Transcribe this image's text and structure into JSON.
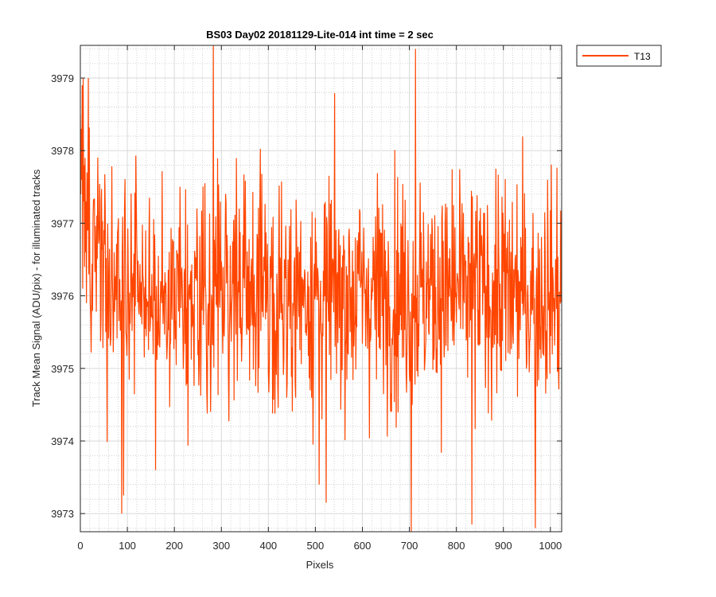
{
  "chart_data": {
    "type": "line",
    "title": "BS03 Day02 20181129-Lite-014 int time = 2 sec",
    "xlabel": "Pixels",
    "ylabel": "Track Mean Signal (ADU/pix) - for illuminated tracks",
    "xlim": [
      0,
      1024
    ],
    "ylim": [
      3972.75,
      3979.45
    ],
    "xticks": [
      0,
      100,
      200,
      300,
      400,
      500,
      600,
      700,
      800,
      900,
      1000
    ],
    "yticks": [
      3973,
      3974,
      3975,
      3976,
      3977,
      3978,
      3979
    ],
    "xtick_labels": [
      "0",
      "100",
      "200",
      "300",
      "400",
      "500",
      "600",
      "700",
      "800",
      "900",
      "1000"
    ],
    "ytick_labels": [
      "3973",
      "3974",
      "3975",
      "3976",
      "3977",
      "3978",
      "3979"
    ],
    "grid": true,
    "minor_grid": true,
    "legend_position": "outside-top-right",
    "series": [
      {
        "name": "T13",
        "color": "#ff4500",
        "description": "Noisy signal over 1024 pixels, elevated near start (~3978) then fluctuating mostly between ~3974 and ~3978 around a mean of ~3976",
        "n_points": 1024,
        "mean": 3976.05,
        "spread": 0.95,
        "start_values": [
          3978.5,
          3977.4,
          3978.3,
          3977.6,
          3978.9,
          3976.1,
          3979.0,
          3977.3,
          3977.8,
          3976.4,
          3977.9,
          3976.6,
          3977.3,
          3975.9,
          3977.7,
          3976.9
        ],
        "notable_points": [
          {
            "x": 283,
            "y": 3979.45
          },
          {
            "x": 713,
            "y": 3979.4
          },
          {
            "x": 704,
            "y": 3972.75
          },
          {
            "x": 968,
            "y": 3972.8
          },
          {
            "x": 88,
            "y": 3973.0
          },
          {
            "x": 92,
            "y": 3973.25
          },
          {
            "x": 523,
            "y": 3973.15
          },
          {
            "x": 833,
            "y": 3972.85
          },
          {
            "x": 508,
            "y": 3973.4
          },
          {
            "x": 160,
            "y": 3973.6
          },
          {
            "x": 17,
            "y": 3979.0
          }
        ]
      }
    ]
  }
}
